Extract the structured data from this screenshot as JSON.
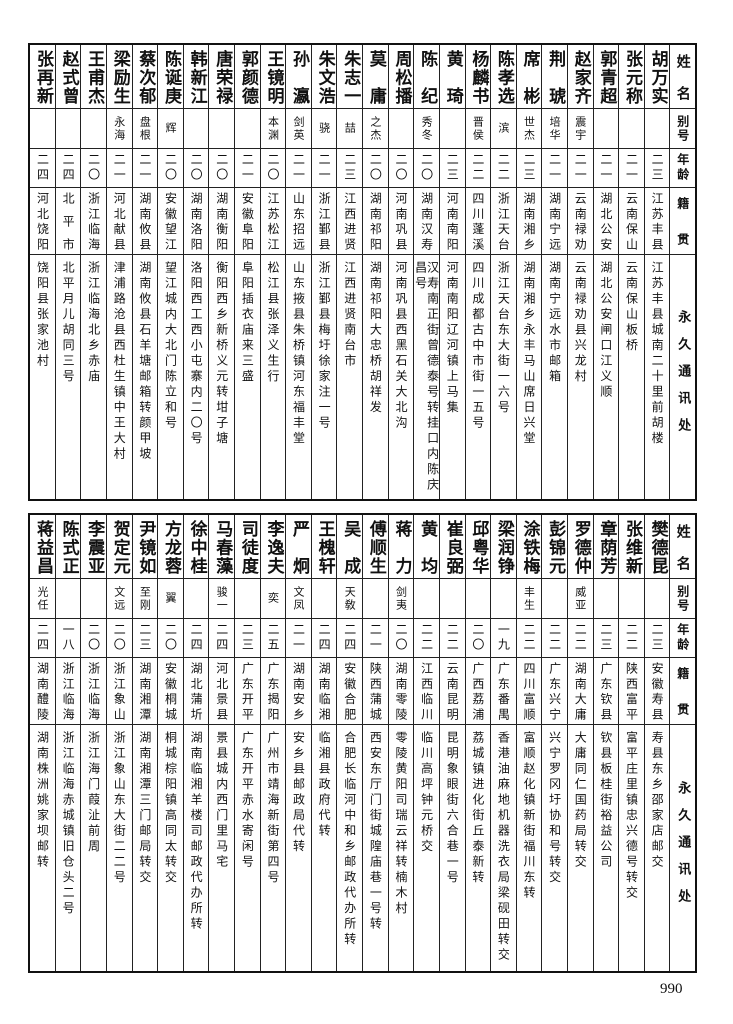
{
  "headers": {
    "name": "姓名",
    "alias": "别号",
    "age": "年龄",
    "native": "籍贯",
    "address": "永久通讯处"
  },
  "top_table": [
    {
      "name": "胡万实",
      "alias": "",
      "age": "二三",
      "native": "江苏丰县",
      "address": "江苏丰县城南二十里前胡楼"
    },
    {
      "name": "张元称",
      "alias": "",
      "age": "二一",
      "native": "云南保山",
      "address": "云南保山板桥"
    },
    {
      "name": "郭青超",
      "alias": "",
      "age": "二一",
      "native": "湖北公安",
      "address": "湖北公安闸口江义顺"
    },
    {
      "name": "赵家齐",
      "alias": "震宇",
      "age": "二一",
      "native": "云南禄劝",
      "address": "云南禄劝县兴龙村"
    },
    {
      "name": "荆琥",
      "alias": "培华",
      "age": "二一",
      "native": "湖南宁远",
      "address": "湖南宁远水市邮箱"
    },
    {
      "name": "席彬",
      "alias": "世杰",
      "age": "二三",
      "native": "湖南湘乡",
      "address": "湖南湘乡永丰马山席日兴堂"
    },
    {
      "name": "陈孝选",
      "alias": "滨",
      "age": "二二",
      "native": "浙江天台",
      "address": "浙江天台东大街一六号"
    },
    {
      "name": "杨麟书",
      "alias": "晋侯",
      "age": "二二",
      "native": "四川蓬溪",
      "address": "四川成都古中市街一五号"
    },
    {
      "name": "黄琦",
      "alias": "",
      "age": "二三",
      "native": "河南南阳",
      "address": "河南南阳辽河镇上马集"
    },
    {
      "name": "陈纪",
      "alias": "秀冬",
      "age": "二〇",
      "native": "湖南汉寿",
      "address": "汉寿南正街曾德泰号转挂口内陈庆昌号"
    },
    {
      "name": "周松播",
      "alias": "",
      "age": "二〇",
      "native": "河南巩县",
      "address": "河南巩县西黑石关大北沟"
    },
    {
      "name": "莫庸",
      "alias": "之杰",
      "age": "二〇",
      "native": "湖南祁阳",
      "address": "湖南祁阳大忠桥胡祥发"
    },
    {
      "name": "朱志一",
      "alias": "喆",
      "age": "二三",
      "native": "江西进贤",
      "address": "江西进贤南台市"
    },
    {
      "name": "朱文浩",
      "alias": "骁",
      "age": "二一",
      "native": "浙江鄞县",
      "address": "浙江鄞县梅圩徐家注一号"
    },
    {
      "name": "孙瀛",
      "alias": "剑英",
      "age": "二一",
      "native": "山东招远",
      "address": "山东掖县朱桥镇河东福丰堂"
    },
    {
      "name": "王镜明",
      "alias": "本渊",
      "age": "二〇",
      "native": "江苏松江",
      "address": "松江县张泽义生行"
    },
    {
      "name": "郭颜德",
      "alias": "",
      "age": "二一",
      "native": "安徽阜阳",
      "address": "阜阳插衣庙来三盛"
    },
    {
      "name": "唐荣禄",
      "alias": "",
      "age": "二〇",
      "native": "湖南衡阳",
      "address": "衡阳西乡新桥义元转坩子塘"
    },
    {
      "name": "韩新江",
      "alias": "",
      "age": "二〇",
      "native": "湖南洛阳",
      "address": "洛阳西工西小屯寨内二〇号"
    },
    {
      "name": "陈诞庚",
      "alias": "辉",
      "age": "二〇",
      "native": "安徽望江",
      "address": "望江城内大北门陈立和号"
    },
    {
      "name": "蔡次郁",
      "alias": "盘根",
      "age": "二一",
      "native": "湖南攸县",
      "address": "湖南攸县石羊塘邮箱转颜甲坡"
    },
    {
      "name": "梁励生",
      "alias": "永海",
      "age": "二一",
      "native": "河北献县",
      "address": "津浦路沧县西杜生镇中王大村"
    },
    {
      "name": "王甫杰",
      "alias": "",
      "age": "二〇",
      "native": "浙江临海",
      "address": "浙江临海北乡赤庙"
    },
    {
      "name": "赵式曾",
      "alias": "",
      "age": "二四",
      "native": "北平市",
      "address": "北平月儿胡同三号"
    },
    {
      "name": "张再新",
      "alias": "",
      "age": "二四",
      "native": "河北饶阳",
      "address": "饶阳县张家池村"
    }
  ],
  "bottom_table": [
    {
      "name": "樊德昆",
      "alias": "",
      "age": "二三",
      "native": "安徽寿县",
      "address": "寿县东乡邵家店邮交"
    },
    {
      "name": "张维新",
      "alias": "",
      "age": "二二",
      "native": "陕西富平",
      "address": "富平庄里镇忠兴德号转交"
    },
    {
      "name": "章荫芳",
      "alias": "",
      "age": "二三",
      "native": "广东钦县",
      "address": "钦县板桂街裕益公司"
    },
    {
      "name": "罗德仲",
      "alias": "威亚",
      "age": "二二",
      "native": "湖南大庸",
      "address": "大庸同仁国药局转交"
    },
    {
      "name": "彭锦元",
      "alias": "",
      "age": "二二",
      "native": "广东兴宁",
      "address": "兴宁罗冈圩协和号转交"
    },
    {
      "name": "涂铁梅",
      "alias": "丰生",
      "age": "二二",
      "native": "四川富顺",
      "address": "富顺赵化镇新街福川东转"
    },
    {
      "name": "梁润铮",
      "alias": "",
      "age": "一九",
      "native": "广东番禺",
      "address": "香港油麻地机器洗衣局梁砚田转交"
    },
    {
      "name": "邱粤华",
      "alias": "",
      "age": "二〇",
      "native": "广西荔浦",
      "address": "荔城镇进化街丘泰新转"
    },
    {
      "name": "崔良弼",
      "alias": "",
      "age": "二二",
      "native": "云南昆明",
      "address": "昆明象眼街六合巷一号"
    },
    {
      "name": "黄均",
      "alias": "",
      "age": "二二",
      "native": "江西临川",
      "address": "临川高坪钟元桥交"
    },
    {
      "name": "蒋力",
      "alias": "剑夷",
      "age": "二〇",
      "native": "湖南零陵",
      "address": "零陵黄阳司瑞云祥转楠木村"
    },
    {
      "name": "傅顺生",
      "alias": "",
      "age": "二一",
      "native": "陕西蒲城",
      "address": "西安东厅门街城隍庙巷一号转"
    },
    {
      "name": "吴成",
      "alias": "天敎",
      "age": "二四",
      "native": "安徽合肥",
      "address": "合肥长临河中和乡邮政代办所转"
    },
    {
      "name": "王槐轩",
      "alias": "",
      "age": "二四",
      "native": "湖南临湘",
      "address": "临湘县政府代转"
    },
    {
      "name": "严炯",
      "alias": "文凤",
      "age": "二一",
      "native": "湖南安乡",
      "address": "安乡县邮政局代转"
    },
    {
      "name": "李逸夫",
      "alias": "奕",
      "age": "二五",
      "native": "广东揭阳",
      "address": "广州市靖海新街第四号"
    },
    {
      "name": "司徒度",
      "alias": "",
      "age": "二三",
      "native": "广东开平",
      "address": "广东开平赤水寄闲号"
    },
    {
      "name": "马春藻",
      "alias": "骏一",
      "age": "二四",
      "native": "河北景县",
      "address": "景县城内西门里马宅"
    },
    {
      "name": "徐中桂",
      "alias": "",
      "age": "二四",
      "native": "湖北蒲圻",
      "address": "湖南临湘羊楼司邮政代办所转"
    },
    {
      "name": "方龙蓉",
      "alias": "翼",
      "age": "二〇",
      "native": "安徽桐城",
      "address": "桐城棕阳镇高同太转交"
    },
    {
      "name": "尹镜如",
      "alias": "至刚",
      "age": "二三",
      "native": "湖南湘潭",
      "address": "湖南湘潭三门邮局转交"
    },
    {
      "name": "贺定元",
      "alias": "文远",
      "age": "二〇",
      "native": "浙江象山",
      "address": "浙江象山东大街二二号"
    },
    {
      "name": "李震亚",
      "alias": "",
      "age": "二〇",
      "native": "浙江临海",
      "address": "浙江海门葭沚前周"
    },
    {
      "name": "陈式正",
      "alias": "",
      "age": "一八",
      "native": "浙江临海",
      "address": "浙江临海赤城镇旧仓头二号"
    },
    {
      "name": "蒋益昌",
      "alias": "光任",
      "age": "二四",
      "native": "湖南醴陵",
      "address": "湖南株洲姚家坝邮转"
    }
  ],
  "page_number": "990"
}
